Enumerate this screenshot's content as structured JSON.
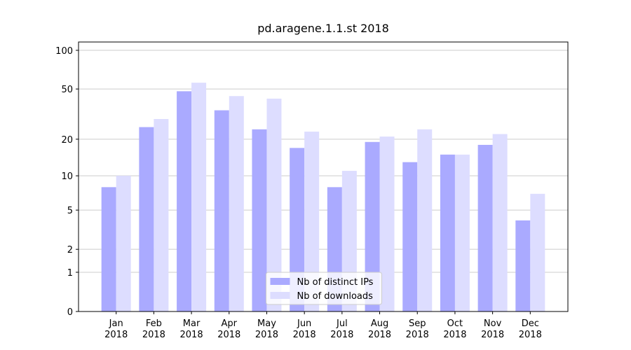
{
  "chart_data": {
    "type": "bar",
    "title": "pd.aragene.1.1.st 2018",
    "categories": [
      "Jan 2018",
      "Feb 2018",
      "Mar 2018",
      "Apr 2018",
      "May 2018",
      "Jun 2018",
      "Jul 2018",
      "Aug 2018",
      "Sep 2018",
      "Oct 2018",
      "Nov 2018",
      "Dec 2018"
    ],
    "series": [
      {
        "name": "Nb of distinct IPs",
        "color": "#aaaaff",
        "values": [
          8,
          25,
          48,
          34,
          24,
          17,
          8,
          19,
          13,
          15,
          18,
          4
        ]
      },
      {
        "name": "Nb of downloads",
        "color": "#ddddff",
        "values": [
          10,
          29,
          56,
          44,
          42,
          23,
          11,
          21,
          24,
          15,
          22,
          7
        ]
      }
    ],
    "yscale": "log1p",
    "ylim": [
      0,
      116
    ],
    "yticks": [
      0,
      1,
      2,
      5,
      10,
      20,
      50,
      100
    ],
    "grid": true,
    "legend": "lower center"
  }
}
